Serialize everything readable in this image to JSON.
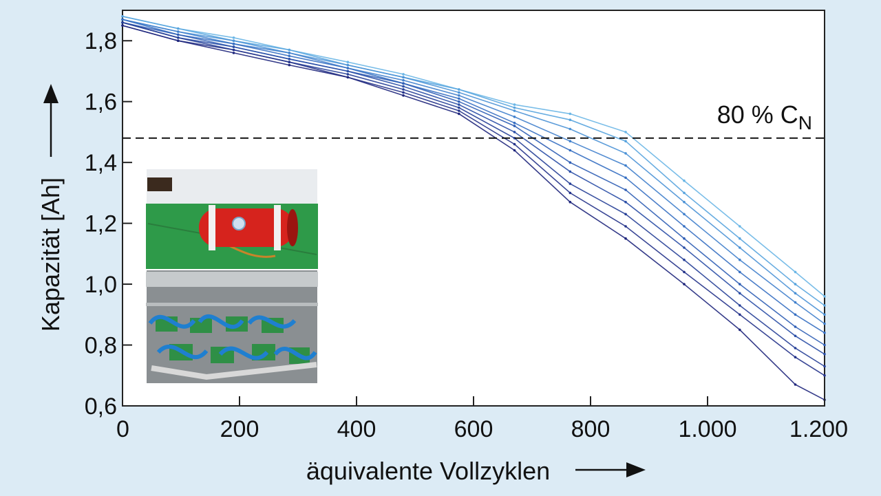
{
  "chart_data": {
    "type": "line",
    "title": "",
    "xlabel": "äquivalente Vollzyklen",
    "ylabel": "Kapazität [Ah]",
    "xlim": [
      0,
      1200
    ],
    "ylim": [
      0.6,
      1.9
    ],
    "x_ticks": [
      0,
      200,
      400,
      600,
      800,
      1000,
      1200
    ],
    "x_tick_labels": [
      "0",
      "200",
      "400",
      "600",
      "800",
      "1.000",
      "1.200"
    ],
    "y_ticks": [
      0.6,
      0.8,
      1.0,
      1.2,
      1.4,
      1.6,
      1.8
    ],
    "y_tick_labels": [
      "0,6",
      "0,8",
      "1,0",
      "1,2",
      "1,4",
      "1,6",
      "1,8"
    ],
    "grid": false,
    "reference_line": {
      "y": 1.48,
      "style": "dashed",
      "label_main": "80 % C",
      "label_sub": "N"
    },
    "x": [
      0,
      95,
      190,
      285,
      385,
      480,
      575,
      670,
      765,
      860,
      960,
      1055,
      1150,
      1200
    ],
    "series": [
      {
        "values": [
          1.88,
          1.84,
          1.81,
          1.77,
          1.73,
          1.69,
          1.64,
          1.59,
          1.56,
          1.5,
          1.34,
          1.19,
          1.04,
          0.96
        ]
      },
      {
        "values": [
          1.88,
          1.84,
          1.8,
          1.77,
          1.72,
          1.68,
          1.64,
          1.58,
          1.54,
          1.47,
          1.3,
          1.15,
          1.0,
          0.93
        ]
      },
      {
        "values": [
          1.87,
          1.83,
          1.8,
          1.76,
          1.72,
          1.68,
          1.63,
          1.57,
          1.51,
          1.43,
          1.27,
          1.12,
          0.97,
          0.9
        ]
      },
      {
        "values": [
          1.87,
          1.83,
          1.79,
          1.76,
          1.71,
          1.67,
          1.62,
          1.55,
          1.47,
          1.39,
          1.23,
          1.08,
          0.94,
          0.87
        ]
      },
      {
        "values": [
          1.87,
          1.82,
          1.79,
          1.75,
          1.71,
          1.66,
          1.61,
          1.53,
          1.44,
          1.35,
          1.19,
          1.04,
          0.9,
          0.84
        ]
      },
      {
        "values": [
          1.86,
          1.82,
          1.78,
          1.74,
          1.7,
          1.66,
          1.6,
          1.52,
          1.4,
          1.31,
          1.15,
          1.0,
          0.86,
          0.8
        ]
      },
      {
        "values": [
          1.86,
          1.81,
          1.78,
          1.74,
          1.7,
          1.65,
          1.59,
          1.5,
          1.37,
          1.27,
          1.12,
          0.97,
          0.83,
          0.77
        ]
      },
      {
        "values": [
          1.86,
          1.81,
          1.77,
          1.73,
          1.69,
          1.64,
          1.58,
          1.48,
          1.33,
          1.23,
          1.08,
          0.93,
          0.79,
          0.73
        ]
      },
      {
        "values": [
          1.85,
          1.8,
          1.77,
          1.73,
          1.68,
          1.63,
          1.57,
          1.46,
          1.3,
          1.19,
          1.04,
          0.9,
          0.76,
          0.7
        ]
      },
      {
        "values": [
          1.85,
          1.8,
          1.76,
          1.72,
          1.68,
          1.62,
          1.56,
          1.44,
          1.27,
          1.15,
          1.0,
          0.85,
          0.67,
          0.62
        ]
      }
    ],
    "series_colors": [
      "#6ab6e6",
      "#58a4de",
      "#4b92d6",
      "#4080cc",
      "#366fc2",
      "#2f5eb5",
      "#2a4ea6",
      "#263f97",
      "#23328a",
      "#1f267c"
    ]
  }
}
